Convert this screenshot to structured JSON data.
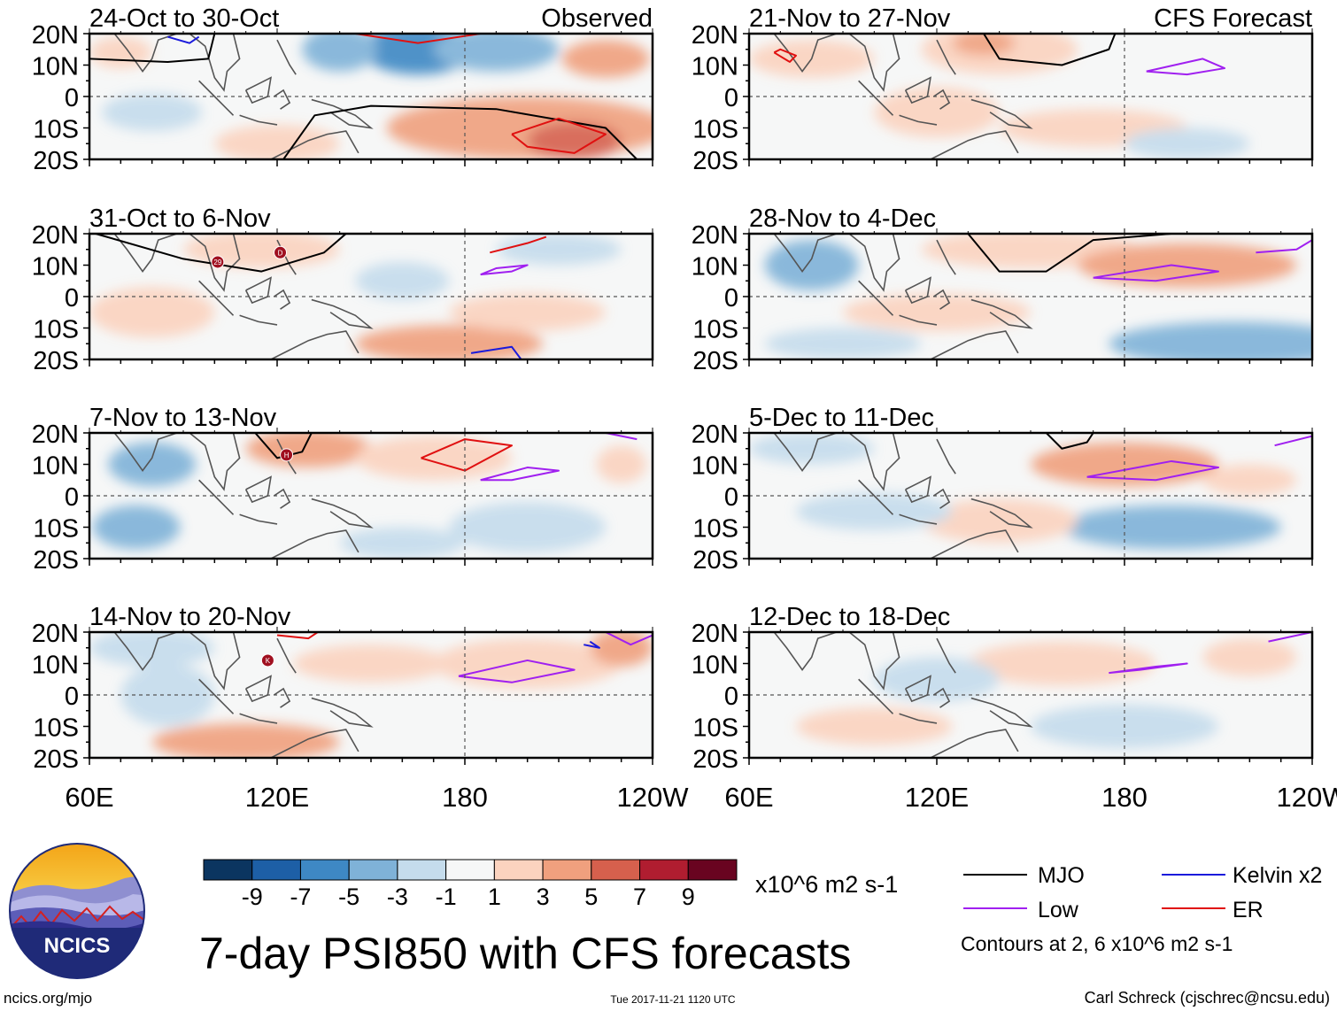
{
  "chart_data": {
    "type": "heatmap",
    "title": "7-day PSI850 with CFS forecasts",
    "variable": "PSI850",
    "units": "x10^6 m2 s-1",
    "x_axis": {
      "ticks": [
        "60E",
        "120E",
        "180",
        "120W"
      ],
      "range_deg_lon": [
        60,
        240
      ]
    },
    "y_axis": {
      "ticks": [
        "20N",
        "10N",
        "0",
        "10S",
        "20S"
      ],
      "range_deg_lat": [
        -20,
        20
      ]
    },
    "column_labels": {
      "left": "Observed",
      "right": "CFS Forecast"
    },
    "panels": [
      {
        "id": "p1",
        "column": "left",
        "period": "24-Oct to 30-Oct",
        "source": "Observed"
      },
      {
        "id": "p2",
        "column": "left",
        "period": "31-Oct to 6-Nov",
        "source": "Observed"
      },
      {
        "id": "p3",
        "column": "left",
        "period": "7-Nov to 13-Nov",
        "source": "Observed"
      },
      {
        "id": "p4",
        "column": "left",
        "period": "14-Nov to 20-Nov",
        "source": "Observed"
      },
      {
        "id": "p5",
        "column": "right",
        "period": "21-Nov to 27-Nov",
        "source": "CFS Forecast"
      },
      {
        "id": "p6",
        "column": "right",
        "period": "28-Nov to 4-Dec",
        "source": "CFS Forecast"
      },
      {
        "id": "p7",
        "column": "right",
        "period": "5-Dec to 11-Dec",
        "source": "CFS Forecast"
      },
      {
        "id": "p8",
        "column": "right",
        "period": "12-Dec to 18-Dec",
        "source": "CFS Forecast"
      }
    ],
    "colorbar": {
      "tick_labels": [
        "-9",
        "-7",
        "-5",
        "-3",
        "-1",
        "1",
        "3",
        "5",
        "7",
        "9"
      ],
      "colors": [
        "#0b3560",
        "#1d5fa6",
        "#3e88c4",
        "#7fb2d8",
        "#c5dcec",
        "#f6f7f7",
        "#fbd3bf",
        "#f0a07e",
        "#d6604d",
        "#b01d30",
        "#690420"
      ]
    },
    "contour_legend": [
      {
        "label": "MJO",
        "color": "#000000"
      },
      {
        "label": "Kelvin x2",
        "color": "#1a1adc"
      },
      {
        "label": "Low",
        "color": "#a020f0"
      },
      {
        "label": "ER",
        "color": "#e01010"
      }
    ],
    "contour_note": "Contours at 2, 6 x10^6 m2 s-1",
    "storm_markers": [
      {
        "panel": "p2",
        "label": "29"
      },
      {
        "panel": "p2",
        "label": "D"
      },
      {
        "panel": "p3",
        "label": "H"
      },
      {
        "panel": "p4",
        "label": "K"
      }
    ]
  },
  "footer": {
    "logo_text": "NCICS",
    "url": "ncics.org/mjo",
    "timestamp": "Tue 2017-11-21 1120 UTC",
    "credit": "Carl Schreck (cjschrec@ncsu.edu)"
  }
}
